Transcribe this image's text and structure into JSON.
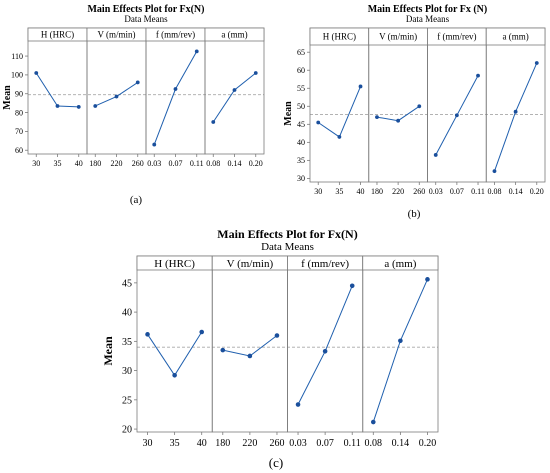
{
  "chart_data": [
    {
      "type": "line",
      "id": "a",
      "title": "Main Effects Plot for Fx(N)",
      "subtitle": "Data Means",
      "ylabel": "Mean",
      "caption": "(a)",
      "ylim": [
        58,
        118
      ],
      "yticks": [
        60,
        70,
        80,
        90,
        100,
        110
      ],
      "reference_line": 89.5,
      "legend": "none",
      "grid": false,
      "panels": [
        {
          "name": "H (HRC)",
          "categories": [
            "30",
            "35",
            "40"
          ],
          "values": [
            101,
            83.5,
            83
          ]
        },
        {
          "name": "V (m/min)",
          "categories": [
            "180",
            "220",
            "260"
          ],
          "values": [
            83.5,
            88.5,
            96
          ]
        },
        {
          "name": "f (mm/rev)",
          "categories": [
            "0.03",
            "0.07",
            "0.11"
          ],
          "values": [
            63,
            92.5,
            112.5
          ]
        },
        {
          "name": "a (mm)",
          "categories": [
            "0.08",
            "0.14",
            "0.20"
          ],
          "values": [
            75,
            92,
            101
          ]
        }
      ]
    },
    {
      "type": "line",
      "id": "b",
      "title": "Main Effects Plot for Fx (N)",
      "subtitle": "Data Means",
      "ylabel": "Mean",
      "caption": "(b)",
      "ylim": [
        29,
        67
      ],
      "yticks": [
        30,
        35,
        40,
        45,
        50,
        55,
        60,
        65
      ],
      "reference_line": 47.7,
      "legend": "none",
      "grid": false,
      "panels": [
        {
          "name": "H (HRC)",
          "categories": [
            "30",
            "35",
            "40"
          ],
          "values": [
            45.5,
            41.5,
            55.5
          ]
        },
        {
          "name": "V (m/min)",
          "categories": [
            "180",
            "220",
            "260"
          ],
          "values": [
            47,
            46,
            50
          ]
        },
        {
          "name": "f (mm/rev)",
          "categories": [
            "0.03",
            "0.07",
            "0.11"
          ],
          "values": [
            36.5,
            47.5,
            58.5
          ]
        },
        {
          "name": "a (mm)",
          "categories": [
            "0.08",
            "0.14",
            "0.20"
          ],
          "values": [
            32,
            48.5,
            62
          ]
        }
      ]
    },
    {
      "type": "line",
      "id": "c",
      "title": "Main Effects Plot for Fx(N)",
      "subtitle": "Data Means",
      "ylabel": "Mean",
      "caption": "(c)",
      "ylim": [
        19.5,
        47.2
      ],
      "yticks": [
        20,
        25,
        30,
        35,
        40,
        45
      ],
      "reference_line": 34,
      "legend": "none",
      "grid": false,
      "panels": [
        {
          "name": "H (HRC)",
          "categories": [
            "30",
            "35",
            "40"
          ],
          "values": [
            36.2,
            29.2,
            36.6
          ]
        },
        {
          "name": "V (m/min)",
          "categories": [
            "180",
            "220",
            "260"
          ],
          "values": [
            33.5,
            32.5,
            36
          ]
        },
        {
          "name": "f (mm/rev)",
          "categories": [
            "0.03",
            "0.07",
            "0.11"
          ],
          "values": [
            24.2,
            33.3,
            44.5
          ]
        },
        {
          "name": "a (mm)",
          "categories": [
            "0.08",
            "0.14",
            "0.20"
          ],
          "values": [
            21.2,
            35.1,
            45.6
          ]
        }
      ]
    }
  ],
  "colors": {
    "line": "#1f5fae",
    "marker": "#1a4f9c",
    "reference": "#a8a8a8",
    "frame": "#7a7a7a",
    "header_fill": "#ffffff"
  }
}
